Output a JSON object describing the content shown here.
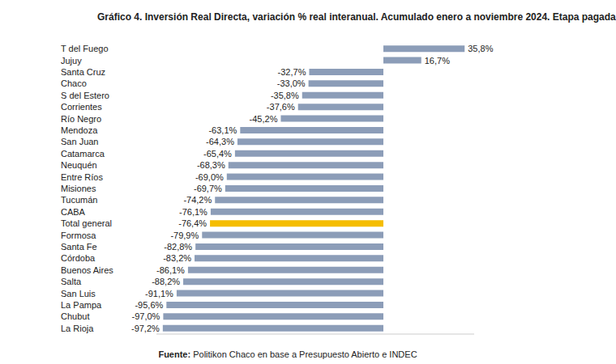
{
  "chart_data": {
    "type": "bar",
    "orientation": "horizontal",
    "title": "Gráfico 4. Inversión Real Directa, variación % real interanual. Acumulado enero a noviembre 2024. Etapa pagada",
    "source_label": "Fuente:",
    "source": "Politikon Chaco en base a Presupuesto Abierto e INDEC",
    "categories": [
      "T del Fuego",
      "Jujuy",
      "Santa Cruz",
      "Chaco",
      "S del Estero",
      "Corrientes",
      "Río Negro",
      "Mendoza",
      "San Juan",
      "Catamarca",
      "Neuquén",
      "Entre Ríos",
      "Misiones",
      "Tucumán",
      "CABA",
      "Total general",
      "Formosa",
      "Santa Fe",
      "Córdoba",
      "Buenos Aires",
      "Salta",
      "San Luis",
      "La Pampa",
      "Chubut",
      "La Rioja"
    ],
    "values": [
      35.8,
      16.7,
      -32.7,
      -33.0,
      -35.8,
      -37.6,
      -45.2,
      -63.1,
      -64.3,
      -65.4,
      -68.3,
      -69.0,
      -69.7,
      -74.2,
      -76.1,
      -76.4,
      -79.9,
      -82.8,
      -83.2,
      -86.1,
      -88.2,
      -91.1,
      -95.6,
      -97.0,
      -97.2
    ],
    "value_labels": [
      "35,8%",
      "16,7%",
      "-32,7%",
      "-33,0%",
      "-35,8%",
      "-37,6%",
      "-45,2%",
      "-63,1%",
      "-64,3%",
      "-65,4%",
      "-68,3%",
      "-69,0%",
      "-69,7%",
      "-74,2%",
      "-76,1%",
      "-76,4%",
      "-79,9%",
      "-82,8%",
      "-83,2%",
      "-86,1%",
      "-88,2%",
      "-91,1%",
      "-95,6%",
      "-97,0%",
      "-97,2%"
    ],
    "colors": [
      "#8c9db8",
      "#8c9db8",
      "#8c9db8",
      "#8c9db8",
      "#8c9db8",
      "#8c9db8",
      "#8c9db8",
      "#8c9db8",
      "#8c9db8",
      "#8c9db8",
      "#8c9db8",
      "#8c9db8",
      "#8c9db8",
      "#8c9db8",
      "#8c9db8",
      "#f5bd00",
      "#8c9db8",
      "#8c9db8",
      "#8c9db8",
      "#8c9db8",
      "#8c9db8",
      "#8c9db8",
      "#8c9db8",
      "#8c9db8",
      "#8c9db8"
    ],
    "xlim": [
      -100,
      40
    ],
    "data_labels": true,
    "tick_labels": false,
    "grid": false
  }
}
